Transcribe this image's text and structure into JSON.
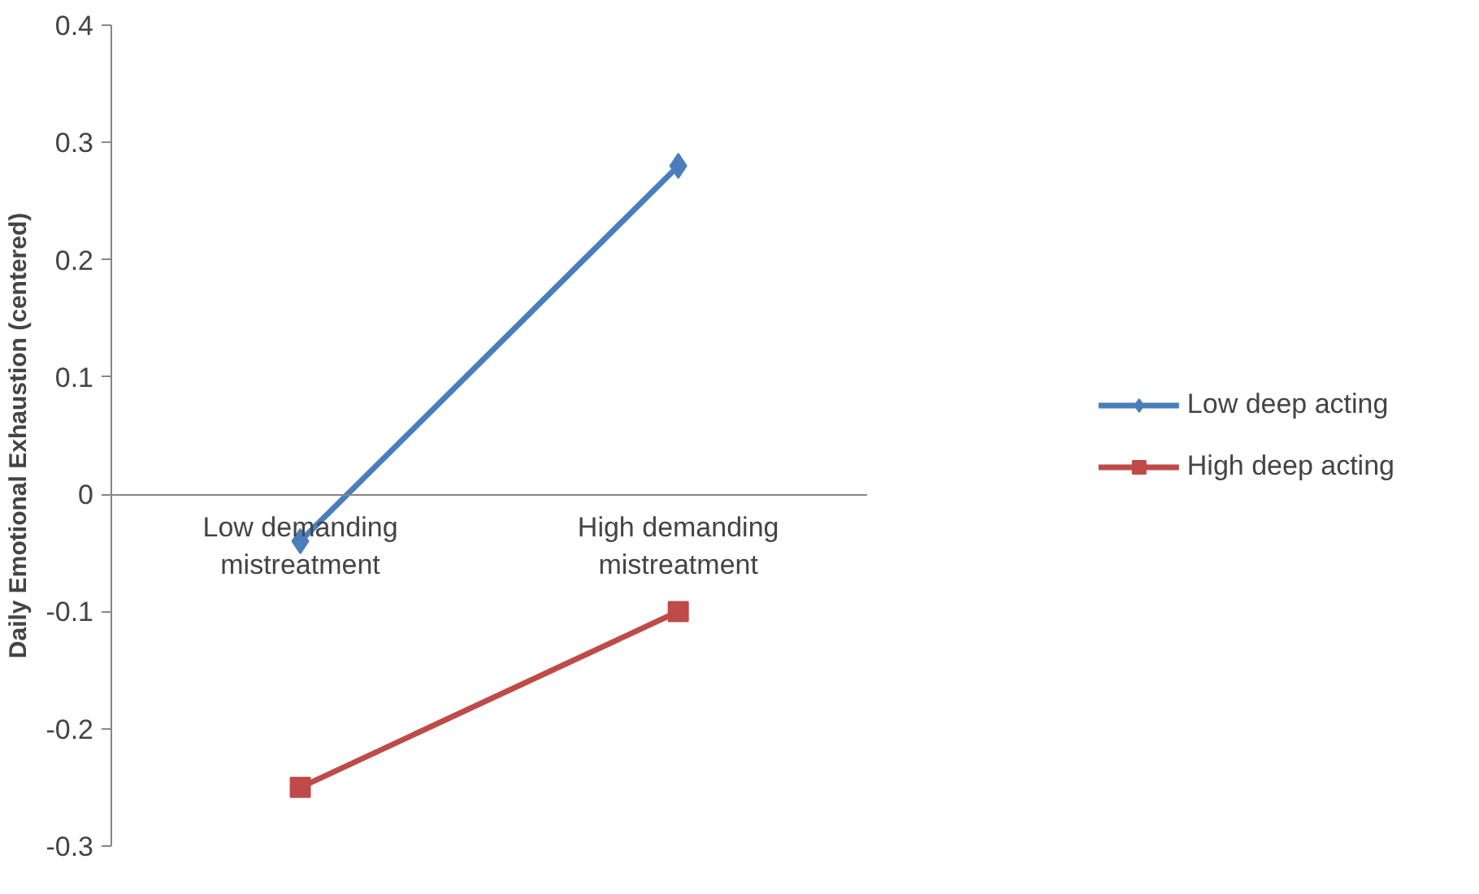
{
  "chart_data": {
    "type": "line",
    "ylabel": "Daily Emotional Exhaustion (centered)",
    "categories": [
      "Low demanding mistreatment",
      "High demanding mistreatment"
    ],
    "series": [
      {
        "name": "Low deep acting",
        "color": "#4a7ebb",
        "marker": "diamond",
        "values": [
          -0.04,
          0.28
        ]
      },
      {
        "name": "High deep acting",
        "color": "#be4b48",
        "marker": "square",
        "values": [
          -0.25,
          -0.1
        ]
      }
    ],
    "ylim": [
      -0.3,
      0.4
    ],
    "yticks": [
      -0.3,
      -0.2,
      -0.1,
      0,
      0.1,
      0.2,
      0.3,
      0.4
    ],
    "grid": false,
    "legend": "right",
    "line_style": "solid"
  }
}
